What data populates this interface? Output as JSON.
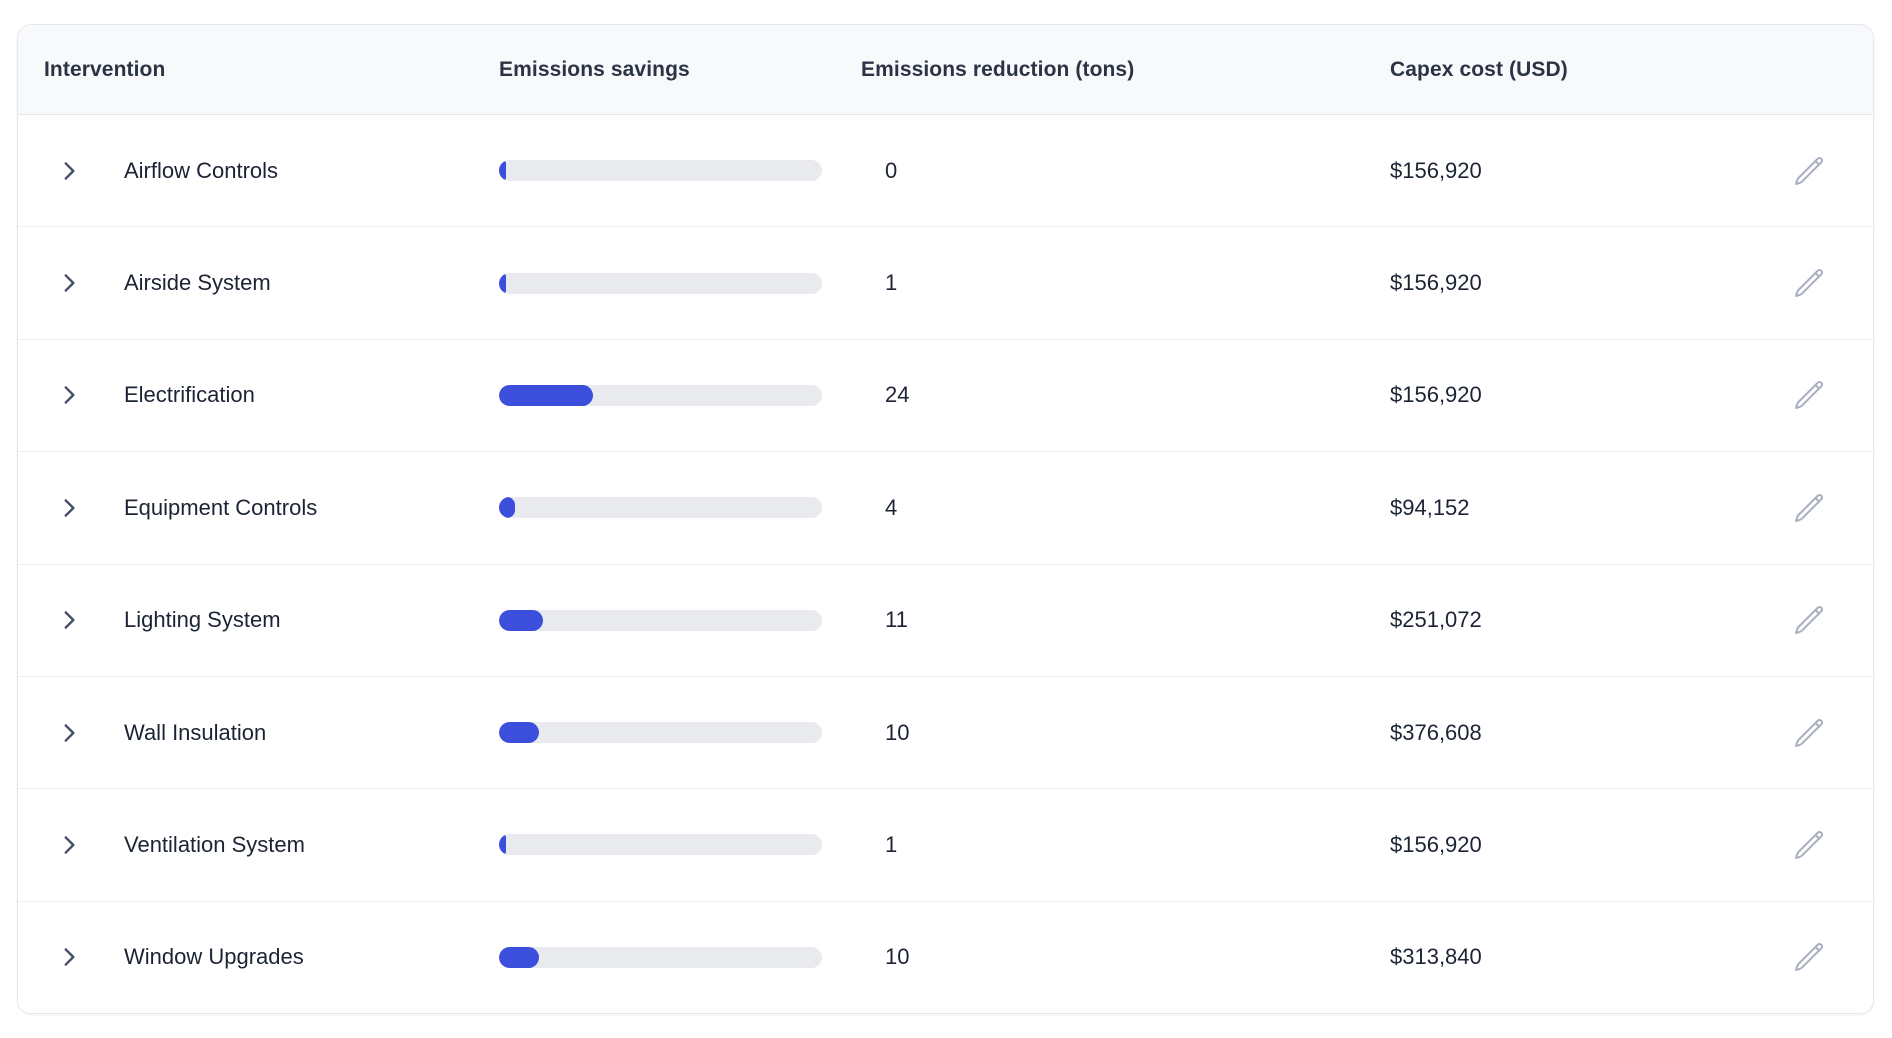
{
  "table": {
    "columns": [
      "Intervention",
      "Emissions savings",
      "Emissions reduction (tons)",
      "Capex cost (USD)"
    ],
    "rows": [
      {
        "name": "Airflow Controls",
        "savings_pct": 1.2,
        "reduction_tons": "0",
        "capex": "$156,920"
      },
      {
        "name": "Airside System",
        "savings_pct": 2,
        "reduction_tons": "1",
        "capex": "$156,920"
      },
      {
        "name": "Electrification",
        "savings_pct": 29,
        "reduction_tons": "24",
        "capex": "$156,920"
      },
      {
        "name": "Equipment Controls",
        "savings_pct": 5,
        "reduction_tons": "4",
        "capex": "$94,152"
      },
      {
        "name": "Lighting System",
        "savings_pct": 13.5,
        "reduction_tons": "11",
        "capex": "$251,072"
      },
      {
        "name": "Wall Insulation",
        "savings_pct": 12.5,
        "reduction_tons": "10",
        "capex": "$376,608"
      },
      {
        "name": "Ventilation System",
        "savings_pct": 2,
        "reduction_tons": "1",
        "capex": "$156,920"
      },
      {
        "name": "Window Upgrades",
        "savings_pct": 12.5,
        "reduction_tons": "10",
        "capex": "$313,840"
      }
    ]
  },
  "icons": {
    "row_expand": "chevron-right-icon",
    "row_edit": "pencil-icon"
  },
  "colors": {
    "bar_fill": "#3b4edc",
    "bar_track": "#e9eaee",
    "header_bg": "#f8f9fb",
    "header_text": "#2b3344",
    "body_text": "#1c2434",
    "separator": "#edeff4",
    "card_border": "#e5e8ee",
    "icon_muted": "#a8afbf",
    "chevron": "#434e66"
  }
}
